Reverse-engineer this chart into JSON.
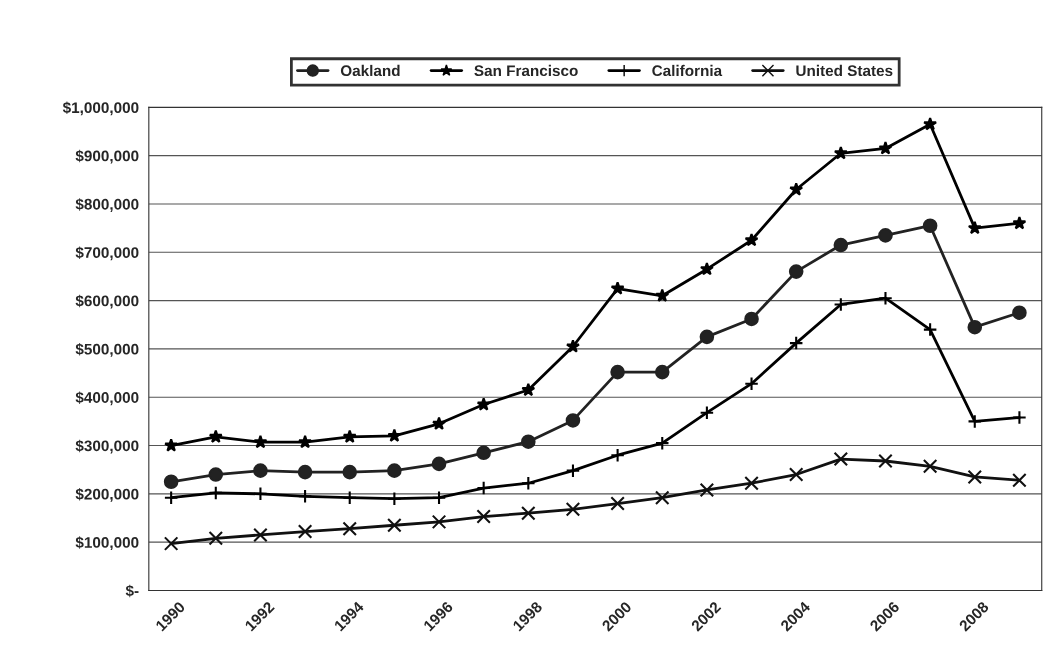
{
  "chart_data": {
    "type": "line",
    "categories": [
      "1990",
      null,
      "1992",
      null,
      "1994",
      null,
      "1996",
      null,
      "1998",
      null,
      "2000",
      null,
      "2002",
      null,
      "2004",
      null,
      "2006",
      null,
      "2008",
      null
    ],
    "series": [
      {
        "name": "Oakland",
        "color": "#222222",
        "marker": "circle",
        "values": [
          225000,
          240000,
          248000,
          245000,
          245000,
          248000,
          262000,
          285000,
          308000,
          352000,
          452000,
          452000,
          525000,
          562000,
          660000,
          715000,
          735000,
          755000,
          545000,
          575000
        ]
      },
      {
        "name": "San Francisco",
        "color": "#000000",
        "marker": "star",
        "values": [
          300000,
          318000,
          307000,
          307000,
          318000,
          320000,
          345000,
          385000,
          415000,
          505000,
          625000,
          610000,
          665000,
          725000,
          830000,
          905000,
          915000,
          965000,
          750000,
          760000
        ]
      },
      {
        "name": "California",
        "color": "#000000",
        "marker": "cross",
        "values": [
          192000,
          202000,
          200000,
          195000,
          192000,
          190000,
          192000,
          212000,
          222000,
          248000,
          280000,
          305000,
          368000,
          428000,
          512000,
          592000,
          605000,
          540000,
          350000,
          358000
        ]
      },
      {
        "name": "United States",
        "color": "#111111",
        "marker": "x",
        "values": [
          97000,
          108000,
          115000,
          122000,
          128000,
          135000,
          142000,
          153000,
          160000,
          168000,
          180000,
          192000,
          208000,
          222000,
          240000,
          272000,
          268000,
          257000,
          235000,
          228000
        ]
      }
    ],
    "ylim": [
      0,
      1000000
    ],
    "yticks": [
      {
        "value": 0,
        "label": "$-"
      },
      {
        "value": 100000,
        "label": "$100,000"
      },
      {
        "value": 200000,
        "label": "$200,000"
      },
      {
        "value": 300000,
        "label": "$300,000"
      },
      {
        "value": 400000,
        "label": "$400,000"
      },
      {
        "value": 500000,
        "label": "$500,000"
      },
      {
        "value": 600000,
        "label": "$600,000"
      },
      {
        "value": 700000,
        "label": "$700,000"
      },
      {
        "value": 800000,
        "label": "$800,000"
      },
      {
        "value": 900000,
        "label": "$900,000"
      },
      {
        "value": 1000000,
        "label": "$1,000,000"
      }
    ],
    "grid": "y",
    "legend": "top",
    "line_style": "solid"
  }
}
